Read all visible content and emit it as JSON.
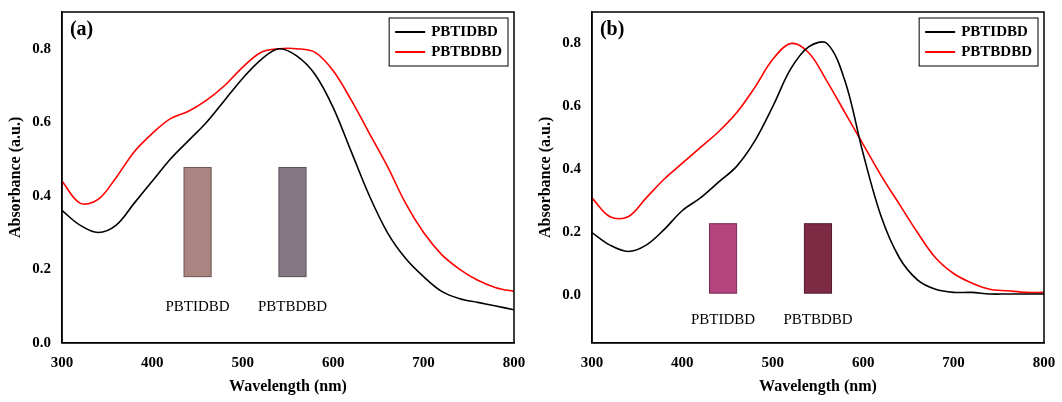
{
  "chart_data": [
    {
      "type": "line",
      "title": "(a)",
      "x_label": "Wavelength (nm)",
      "y_label": "Absorbance (a.u.)",
      "x": [
        300,
        320,
        340,
        360,
        380,
        400,
        420,
        440,
        460,
        480,
        500,
        520,
        540,
        560,
        580,
        600,
        620,
        640,
        660,
        680,
        700,
        720,
        740,
        760,
        780,
        800
      ],
      "series": [
        {
          "name": "PBTIDBD",
          "color": "#000000",
          "values": [
            0.36,
            0.32,
            0.3,
            0.32,
            0.38,
            0.44,
            0.5,
            0.55,
            0.6,
            0.66,
            0.72,
            0.77,
            0.8,
            0.78,
            0.73,
            0.64,
            0.52,
            0.4,
            0.3,
            0.23,
            0.18,
            0.14,
            0.12,
            0.11,
            0.1,
            0.09
          ]
        },
        {
          "name": "PBTBDBD",
          "color": "#ff0000",
          "values": [
            0.44,
            0.38,
            0.39,
            0.45,
            0.52,
            0.57,
            0.61,
            0.63,
            0.66,
            0.7,
            0.75,
            0.79,
            0.8,
            0.8,
            0.79,
            0.74,
            0.66,
            0.57,
            0.48,
            0.38,
            0.3,
            0.24,
            0.2,
            0.17,
            0.15,
            0.14
          ]
        }
      ],
      "xlim": [
        300,
        800
      ],
      "xticks": [
        300,
        400,
        500,
        600,
        700,
        800
      ],
      "ylim": [
        0,
        0.9
      ],
      "yticks": [
        {
          "value": 0,
          "label": "0.0"
        },
        0.2,
        0.4,
        0.6,
        0.8
      ],
      "grid": false,
      "legend": "upper right",
      "annotations": [
        "PBTIDBD",
        "PBTBDBD"
      ]
    },
    {
      "type": "line",
      "title": "(b)",
      "x_label": "Wavelength (nm)",
      "y_label": "Absorbance (a.u.)",
      "x": [
        300,
        320,
        340,
        360,
        380,
        400,
        420,
        440,
        460,
        480,
        500,
        520,
        540,
        560,
        580,
        600,
        620,
        640,
        660,
        680,
        700,
        720,
        740,
        760,
        780,
        800
      ],
      "series": [
        {
          "name": "PBTIDBD",
          "color": "#000000",
          "values": [
            0.2,
            0.16,
            0.14,
            0.16,
            0.21,
            0.27,
            0.31,
            0.36,
            0.41,
            0.49,
            0.6,
            0.72,
            0.79,
            0.8,
            0.68,
            0.45,
            0.25,
            0.12,
            0.05,
            0.02,
            0.01,
            0.01,
            0.005,
            0.005,
            0.005,
            0.005
          ]
        },
        {
          "name": "PBTBDBD",
          "color": "#ff0000",
          "values": [
            0.31,
            0.25,
            0.25,
            0.31,
            0.37,
            0.42,
            0.47,
            0.52,
            0.58,
            0.66,
            0.75,
            0.8,
            0.77,
            0.68,
            0.58,
            0.48,
            0.38,
            0.29,
            0.2,
            0.12,
            0.07,
            0.04,
            0.02,
            0.015,
            0.01,
            0.01
          ]
        }
      ],
      "xlim": [
        300,
        800
      ],
      "xticks": [
        300,
        400,
        500,
        600,
        700,
        800
      ],
      "ylim": [
        -0.15,
        0.9
      ],
      "yticks": [
        {
          "value": 0,
          "label": "0.0"
        },
        0.2,
        0.4,
        0.6,
        0.8
      ],
      "grid": false,
      "legend": "upper right",
      "annotations": [
        "PBTIDBD",
        "PBTBDBD"
      ]
    }
  ]
}
